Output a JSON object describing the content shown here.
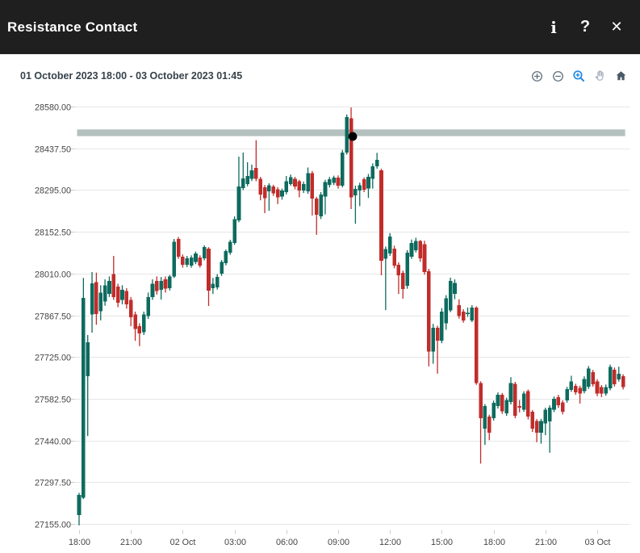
{
  "window": {
    "title": "Resistance Contact",
    "titlebar_icons": [
      {
        "name": "info",
        "glyph": "i"
      },
      {
        "name": "help",
        "glyph": "?"
      },
      {
        "name": "close",
        "glyph": "✕"
      }
    ]
  },
  "subtitle": "01 October 2023 18:00 - 03 October 2023 01:45",
  "toolbar": {
    "buttons": [
      {
        "name": "zoom-in"
      },
      {
        "name": "zoom-out"
      },
      {
        "name": "zoom-mode",
        "active": true
      },
      {
        "name": "pan"
      },
      {
        "name": "reset-view"
      }
    ],
    "icon_color": "#5d6c7b",
    "active_color": "#1e88e5",
    "pan_color": "#a9b5c0",
    "home_color": "#4a5966"
  },
  "chart_data": {
    "type": "candlestick",
    "title": "Resistance Contact",
    "x_range_label": "01 October 2023 18:00 - 03 October 2023 01:45",
    "bar_interval": "15min",
    "grid": true,
    "y_ticks": [
      28580.0,
      28437.5,
      28295.0,
      28152.5,
      28010.0,
      27867.5,
      27725.0,
      27582.5,
      27440.0,
      27297.5,
      27155.0
    ],
    "ylim": [
      27136,
      28599
    ],
    "x_ticks": [
      {
        "label": "18:00",
        "bar": 0
      },
      {
        "label": "21:00",
        "bar": 12
      },
      {
        "label": "02 Oct",
        "bar": 24
      },
      {
        "label": "03:00",
        "bar": 36
      },
      {
        "label": "06:00",
        "bar": 48
      },
      {
        "label": "09:00",
        "bar": 60
      },
      {
        "label": "12:00",
        "bar": 72
      },
      {
        "label": "15:00",
        "bar": 84
      },
      {
        "label": "18:00",
        "bar": 96
      },
      {
        "label": "21:00",
        "bar": 108
      },
      {
        "label": "03 Oct",
        "bar": 120
      }
    ],
    "colors": {
      "up": "#0d6b5e",
      "down": "#c02d2b",
      "band": "#b4c1be",
      "marker": "#000000",
      "grid": "#e6e6e6",
      "tick": "#cfcfcf",
      "axis_text": "#454545"
    },
    "resistance_zone": {
      "top": 28502,
      "bottom": 28479
    },
    "contact_marker": {
      "bar": 63,
      "value": 28478
    },
    "candles_format": [
      "open",
      "high",
      "low",
      "close"
    ],
    "candles": [
      [
        27186,
        27261,
        27150,
        27254
      ],
      [
        27245,
        27995,
        27240,
        27927
      ],
      [
        27660,
        27800,
        27455,
        27775
      ],
      [
        27870,
        28015,
        27808,
        27977
      ],
      [
        27981,
        28013,
        27835,
        27872
      ],
      [
        27881,
        27970,
        27850,
        27945
      ],
      [
        27915,
        27990,
        27900,
        27970
      ],
      [
        27940,
        28000,
        27930,
        27985
      ],
      [
        28008,
        28070,
        27920,
        27930
      ],
      [
        27965,
        27975,
        27895,
        27910
      ],
      [
        27920,
        27970,
        27905,
        27955
      ],
      [
        27950,
        27960,
        27890,
        27905
      ],
      [
        27920,
        27930,
        27830,
        27860
      ],
      [
        27870,
        27880,
        27780,
        27820
      ],
      [
        27830,
        27840,
        27762,
        27805
      ],
      [
        27810,
        27880,
        27800,
        27870
      ],
      [
        27865,
        27945,
        27855,
        27930
      ],
      [
        27930,
        27990,
        27920,
        27975
      ],
      [
        27985,
        28000,
        27938,
        27950
      ],
      [
        27955,
        27998,
        27921,
        27985
      ],
      [
        27990,
        28000,
        27945,
        27958
      ],
      [
        27960,
        28005,
        27952,
        28000
      ],
      [
        28000,
        28128,
        27995,
        28119
      ],
      [
        28128,
        28135,
        28060,
        28067
      ],
      [
        28067,
        28075,
        28030,
        28040
      ],
      [
        28040,
        28070,
        28032,
        28062
      ],
      [
        28037,
        28072,
        28030,
        28064
      ],
      [
        28050,
        28085,
        28042,
        28078
      ],
      [
        28065,
        28072,
        28030,
        28037
      ],
      [
        28062,
        28106,
        28055,
        28100
      ],
      [
        28095,
        28100,
        27899,
        27952
      ],
      [
        27960,
        27995,
        27940,
        27975
      ],
      [
        27963,
        28008,
        27955,
        27999
      ],
      [
        28009,
        28056,
        28002,
        28050
      ],
      [
        28045,
        28092,
        28038,
        28086
      ],
      [
        28081,
        28125,
        28074,
        28119
      ],
      [
        28114,
        28205,
        28108,
        28196
      ],
      [
        28191,
        28409,
        28185,
        28307
      ],
      [
        28302,
        28423,
        28295,
        28335
      ],
      [
        28316,
        28390,
        28308,
        28343
      ],
      [
        28334,
        28382,
        28326,
        28362
      ],
      [
        28370,
        28465,
        28325,
        28334
      ],
      [
        28334,
        28340,
        28260,
        28280
      ],
      [
        28305,
        28312,
        28216,
        28267
      ],
      [
        28290,
        28318,
        28224,
        28311
      ],
      [
        28307,
        28313,
        28275,
        28284
      ],
      [
        28298,
        28305,
        28247,
        28270
      ],
      [
        28272,
        28300,
        28262,
        28293
      ],
      [
        28288,
        28343,
        28280,
        28325
      ],
      [
        28316,
        28348,
        28310,
        28339
      ],
      [
        28334,
        28340,
        28298,
        28307
      ],
      [
        28325,
        28330,
        28270,
        28293
      ],
      [
        28293,
        28324,
        28285,
        28316
      ],
      [
        28290,
        28372,
        28282,
        28352
      ],
      [
        28352,
        28360,
        28208,
        28266
      ],
      [
        28266,
        28272,
        28142,
        28210
      ],
      [
        28205,
        28288,
        28196,
        28280
      ],
      [
        28272,
        28330,
        28212,
        28322
      ],
      [
        28312,
        28340,
        28304,
        28332
      ],
      [
        28320,
        28344,
        28312,
        28337
      ],
      [
        28337,
        28345,
        28300,
        28310
      ],
      [
        28310,
        28432,
        28304,
        28423
      ],
      [
        28423,
        28553,
        28416,
        28544
      ],
      [
        28540,
        28577,
        28230,
        28270
      ],
      [
        28277,
        28310,
        28180,
        28299
      ],
      [
        28293,
        28320,
        28240,
        28311
      ],
      [
        28332,
        28338,
        28288,
        28296
      ],
      [
        28300,
        28350,
        28268,
        28340
      ],
      [
        28334,
        28386,
        28300,
        28376
      ],
      [
        28376,
        28422,
        28368,
        28398
      ],
      [
        28362,
        28368,
        28004,
        28054
      ],
      [
        28060,
        28102,
        27885,
        28093
      ],
      [
        28078,
        28148,
        28070,
        28136
      ],
      [
        28095,
        28105,
        28028,
        28037
      ],
      [
        28040,
        28048,
        27940,
        28004
      ],
      [
        28012,
        28020,
        27924,
        27957
      ],
      [
        27968,
        28090,
        27958,
        28081
      ],
      [
        28067,
        28126,
        28060,
        28114
      ],
      [
        28090,
        28132,
        28082,
        28121
      ],
      [
        28121,
        28124,
        28050,
        28062
      ],
      [
        28110,
        28122,
        28006,
        28015
      ],
      [
        28018,
        28026,
        27693,
        27743
      ],
      [
        27743,
        27838,
        27702,
        27825
      ],
      [
        27825,
        27832,
        27668,
        27780
      ],
      [
        27780,
        27892,
        27772,
        27880
      ],
      [
        27840,
        27936,
        27818,
        27926
      ],
      [
        27884,
        27996,
        27878,
        27984
      ],
      [
        27940,
        27990,
        27922,
        27978
      ],
      [
        27902,
        27922,
        27856,
        27865
      ],
      [
        27880,
        27888,
        27842,
        27850
      ],
      [
        27872,
        27894,
        27862,
        27876
      ],
      [
        27850,
        27902,
        27844,
        27893
      ],
      [
        27893,
        27898,
        27630,
        27636
      ],
      [
        27636,
        27642,
        27361,
        27516
      ],
      [
        27480,
        27564,
        27425,
        27557
      ],
      [
        27521,
        27528,
        27441,
        27466
      ],
      [
        27516,
        27576,
        27508,
        27568
      ],
      [
        27557,
        27604,
        27549,
        27596
      ],
      [
        27596,
        27602,
        27531,
        27540
      ],
      [
        27532,
        27586,
        27524,
        27578
      ],
      [
        27571,
        27656,
        27563,
        27636
      ],
      [
        27633,
        27640,
        27516,
        27524
      ],
      [
        27558,
        27578,
        27536,
        27552
      ],
      [
        27545,
        27608,
        27538,
        27600
      ],
      [
        27608,
        27614,
        27512,
        27521
      ],
      [
        27538,
        27544,
        27469,
        27480
      ],
      [
        27507,
        27513,
        27434,
        27466
      ],
      [
        27466,
        27514,
        27429,
        27507
      ],
      [
        27498,
        27552,
        27458,
        27545
      ],
      [
        27505,
        27560,
        27398,
        27552
      ],
      [
        27545,
        27590,
        27537,
        27582
      ],
      [
        27588,
        27596,
        27551,
        27560
      ],
      [
        27570,
        27577,
        27529,
        27538
      ],
      [
        27577,
        27623,
        27569,
        27615
      ],
      [
        27613,
        27661,
        27606,
        27641
      ],
      [
        27627,
        27634,
        27596,
        27604
      ],
      [
        27620,
        27627,
        27566,
        27600
      ],
      [
        27609,
        27659,
        27601,
        27650
      ],
      [
        27623,
        27694,
        27616,
        27686
      ],
      [
        27673,
        27681,
        27624,
        27632
      ],
      [
        27641,
        27649,
        27591,
        27600
      ],
      [
        27622,
        27629,
        27588,
        27600
      ],
      [
        27600,
        27631,
        27593,
        27622
      ],
      [
        27618,
        27699,
        27611,
        27691
      ],
      [
        27682,
        27689,
        27624,
        27632
      ],
      [
        27648,
        27692,
        27641,
        27668
      ],
      [
        27659,
        27666,
        27614,
        27622
      ]
    ]
  }
}
